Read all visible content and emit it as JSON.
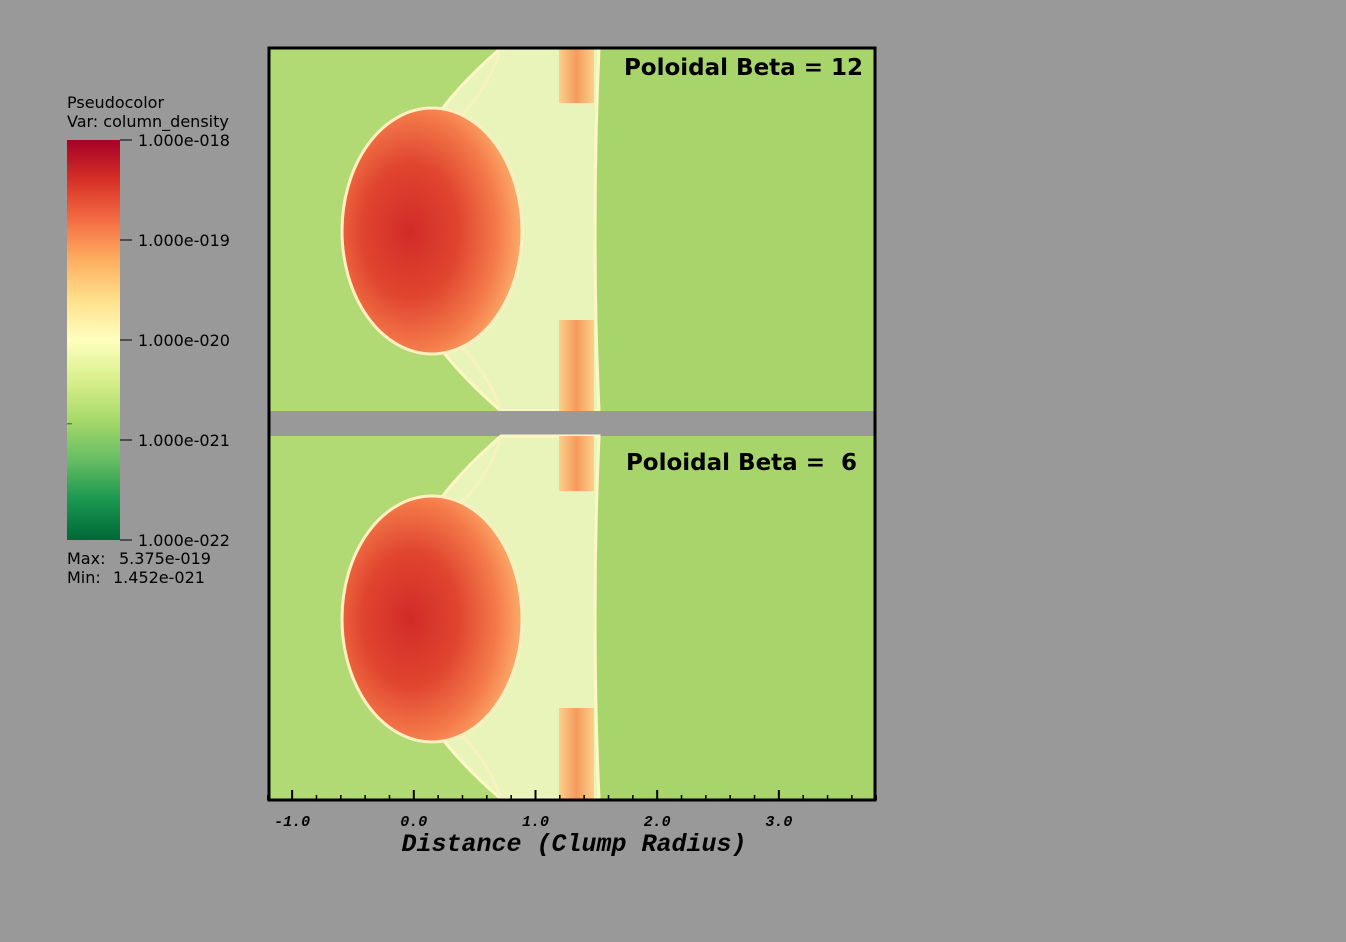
{
  "chart_data": {
    "type": "pseudocolor",
    "legend": {
      "title": "Pseudocolor",
      "variable": "Var: column_density",
      "log_scale": true,
      "clim": [
        1e-22,
        1e-18
      ],
      "colors": [
        "#006837",
        "#1a9850",
        "#66bd63",
        "#a6d96a",
        "#d9ef8b",
        "#ffffbf",
        "#fee08b",
        "#fdae61",
        "#f46d43",
        "#d73027",
        "#a50026"
      ],
      "ticks": [
        {
          "value": 1e-18,
          "label": "1.000e-018"
        },
        {
          "value": 1e-19,
          "label": "1.000e-019"
        },
        {
          "value": 1e-20,
          "label": "1.000e-020"
        },
        {
          "value": 1e-21,
          "label": "1.000e-021"
        },
        {
          "value": 1e-22,
          "label": "1.000e-022"
        }
      ],
      "max_label": "Max:",
      "max": {
        "value": 5.375e-19,
        "label": "5.375e-019"
      },
      "min_label": "Min:",
      "min": {
        "value": 1.452e-21,
        "label": "1.452e-021"
      }
    },
    "panels": [
      {
        "label": "Poloidal Beta = 12"
      },
      {
        "label": "Poloidal Beta =  6"
      }
    ],
    "xlabel": "Distance (Clump Radius)",
    "xlim": [
      -1.19,
      3.79
    ],
    "xticks": [
      {
        "value": -1,
        "label": "-1.0"
      },
      {
        "value": 0,
        "label": "0.0"
      },
      {
        "value": 1,
        "label": "1.0"
      },
      {
        "value": 2,
        "label": "2.0"
      },
      {
        "value": 3,
        "label": "3.0"
      }
    ],
    "xminor_ticks": [
      -1.2,
      -0.8,
      -0.6,
      -0.4,
      -0.2,
      0.2,
      0.4,
      0.6,
      0.8,
      1.2,
      1.4,
      1.6,
      1.8,
      2.2,
      2.4,
      2.6,
      2.8,
      3.2,
      3.4,
      3.6,
      3.8
    ]
  }
}
